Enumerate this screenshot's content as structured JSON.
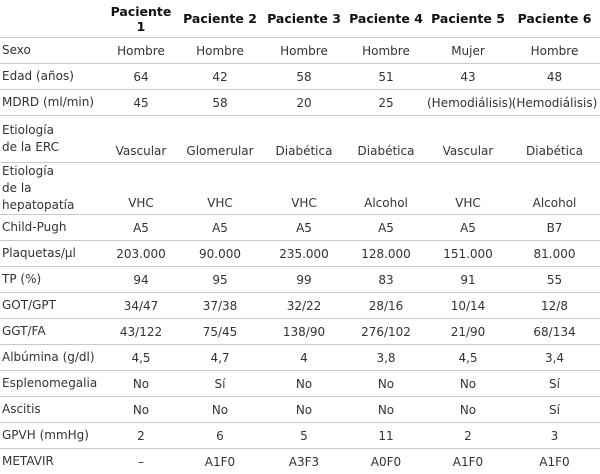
{
  "table": {
    "header": [
      "Paciente 1",
      "Paciente 2",
      "Paciente 3",
      "Paciente 4",
      "Paciente 5",
      "Paciente 6"
    ],
    "rows": [
      {
        "label": [
          "Sexo"
        ],
        "cells": [
          "Hombre",
          "Hombre",
          "Hombre",
          "Hombre",
          "Mujer",
          "Hombre"
        ]
      },
      {
        "label": [
          "Edad (años)"
        ],
        "cells": [
          "64",
          "42",
          "58",
          "51",
          "43",
          "48"
        ]
      },
      {
        "label": [
          "MDRD (ml/min)"
        ],
        "cells": [
          "45",
          "58",
          "20",
          "25",
          "(Hemodiálisis)",
          "(Hemodiálisis)"
        ]
      },
      {
        "label": [
          "Etiología",
          "de la ERC"
        ],
        "cells": [
          "Vascular",
          "Glomerular",
          "Diabética",
          "Diabética",
          "Vascular",
          "Diabética"
        ]
      },
      {
        "label": [
          "Etiología",
          "de la hepatopatía"
        ],
        "cells": [
          "VHC",
          "VHC",
          "VHC",
          "Alcohol",
          "VHC",
          "Alcohol"
        ]
      },
      {
        "label": [
          "Child-Pugh"
        ],
        "cells": [
          "A5",
          "A5",
          "A5",
          "A5",
          "A5",
          "B7"
        ]
      },
      {
        "label": [
          "Plaquetas/µl"
        ],
        "cells": [
          "203.000",
          "90.000",
          "235.000",
          "128.000",
          "151.000",
          "81.000"
        ]
      },
      {
        "label": [
          "TP (%)"
        ],
        "cells": [
          "94",
          "95",
          "99",
          "83",
          "91",
          "55"
        ]
      },
      {
        "label": [
          "GOT/GPT"
        ],
        "cells": [
          "34/47",
          "37/38",
          "32/22",
          "28/16",
          "10/14",
          "12/8"
        ]
      },
      {
        "label": [
          "GGT/FA"
        ],
        "cells": [
          "43/122",
          "75/45",
          "138/90",
          "276/102",
          "21/90",
          "68/134"
        ]
      },
      {
        "label": [
          "Albúmina (g/dl)"
        ],
        "cells": [
          "4,5",
          "4,7",
          "4",
          "3,8",
          "4,5",
          "3,4"
        ]
      },
      {
        "label": [
          "Esplenomegalia"
        ],
        "cells": [
          "No",
          "Sí",
          "No",
          "No",
          "No",
          "Sí"
        ]
      },
      {
        "label": [
          "Ascitis"
        ],
        "cells": [
          "No",
          "No",
          "No",
          "No",
          "No",
          "Sí"
        ]
      },
      {
        "label": [
          "GPVH (mmHg)"
        ],
        "cells": [
          "2",
          "6",
          "5",
          "11",
          "2",
          "3"
        ]
      },
      {
        "label": [
          "METAVIR"
        ],
        "cells": [
          "–",
          "A1F0",
          "A3F3",
          "A0F0",
          "A1F0",
          "A1F0"
        ]
      }
    ]
  }
}
